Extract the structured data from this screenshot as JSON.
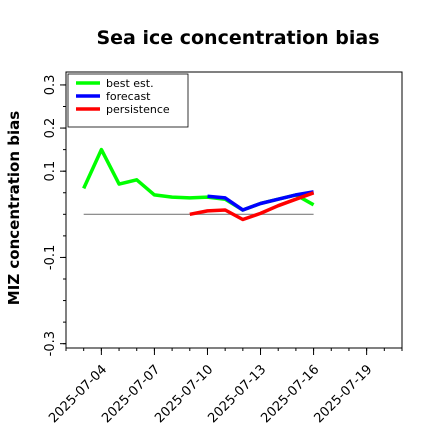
{
  "chart_data": {
    "type": "line",
    "title": "Sea ice concentration bias",
    "ylabel": "MIZ concentration bias",
    "xlabel": "",
    "ylim": [
      -0.31,
      0.33
    ],
    "xlim": [
      "2025-07-02",
      "2025-07-21"
    ],
    "yticks": [
      {
        "value": 0.3,
        "label": "0.3"
      },
      {
        "value": 0.2,
        "label": "0.2"
      },
      {
        "value": 0.1,
        "label": "0.1"
      },
      {
        "value": -0.1,
        "label": "-0.1"
      },
      {
        "value": -0.3,
        "label": "-0.3"
      }
    ],
    "yticks_minor": [
      0.3,
      0.25,
      0.2,
      0.15,
      0.1,
      0.05,
      0.0,
      -0.05,
      -0.1,
      -0.15,
      -0.2,
      -0.25,
      -0.3
    ],
    "xticks": [
      {
        "date": "2025-07-04",
        "label": "2025-07-04",
        "color": "#000000"
      },
      {
        "date": "2025-07-07",
        "label": "2025-07-07",
        "color": "#000000"
      },
      {
        "date": "2025-07-10",
        "label": "2025-07-10",
        "color": "#228b22"
      },
      {
        "date": "2025-07-13",
        "label": "2025-07-13",
        "color": "#000000"
      },
      {
        "date": "2025-07-16",
        "label": "2025-07-16",
        "color": "#000000"
      },
      {
        "date": "2025-07-19",
        "label": "2025-07-19",
        "color": "#000000"
      }
    ],
    "reference_line": {
      "y": 0,
      "from": "2025-07-03",
      "to": "2025-07-16",
      "color": "#7f7f7f"
    },
    "legend_position": "top-left",
    "grid": false,
    "series": [
      {
        "name": "best est.",
        "color": "#00ff00",
        "x": [
          "2025-07-03",
          "2025-07-04",
          "2025-07-05",
          "2025-07-06",
          "2025-07-07",
          "2025-07-08",
          "2025-07-09",
          "2025-07-10",
          "2025-07-11",
          "2025-07-12",
          "2025-07-13",
          "2025-07-14",
          "2025-07-15",
          "2025-07-16"
        ],
        "values": [
          0.06,
          0.15,
          0.07,
          0.08,
          0.045,
          0.04,
          0.038,
          0.04,
          0.035,
          0.01,
          0.025,
          0.035,
          0.045,
          0.022
        ]
      },
      {
        "name": "forecast",
        "color": "#0000ff",
        "x": [
          "2025-07-10",
          "2025-07-11",
          "2025-07-12",
          "2025-07-13",
          "2025-07-14",
          "2025-07-15",
          "2025-07-16"
        ],
        "values": [
          0.042,
          0.038,
          0.01,
          0.025,
          0.035,
          0.045,
          0.052
        ]
      },
      {
        "name": "persistence",
        "color": "#ff0000",
        "x": [
          "2025-07-09",
          "2025-07-10",
          "2025-07-11",
          "2025-07-12",
          "2025-07-13",
          "2025-07-14",
          "2025-07-15",
          "2025-07-16"
        ],
        "values": [
          0.0,
          0.008,
          0.01,
          -0.012,
          0.002,
          0.02,
          0.035,
          0.05
        ]
      }
    ]
  }
}
